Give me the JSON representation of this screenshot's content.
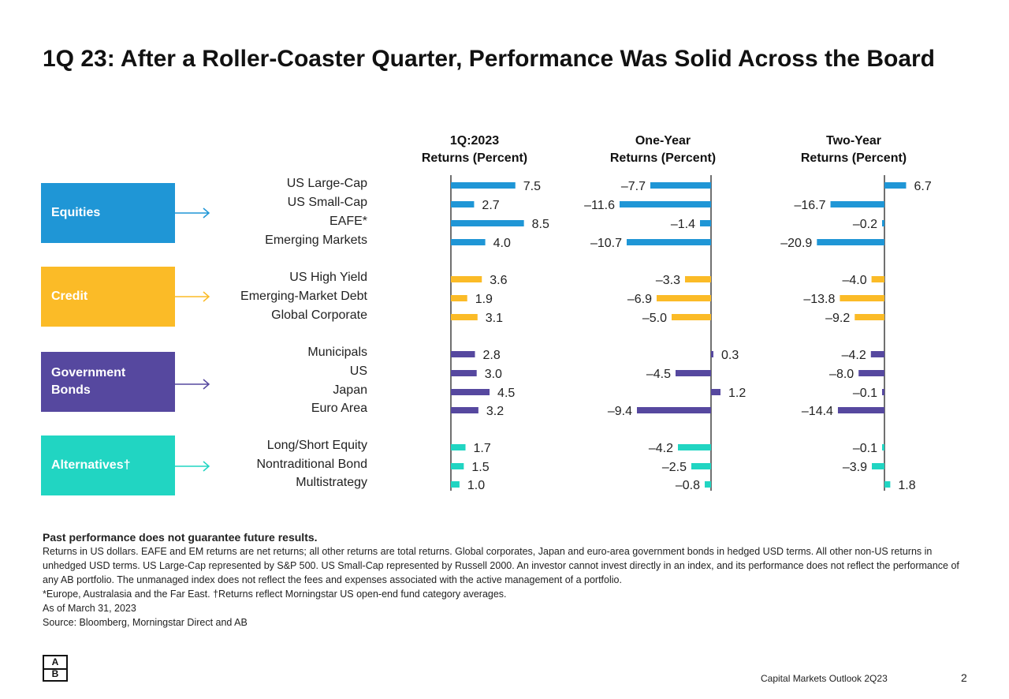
{
  "title": "1Q 23: After a Roller-Coaster Quarter, Performance Was Solid Across the Board",
  "chart_data": {
    "type": "bar",
    "orientation": "horizontal",
    "columns": [
      {
        "line1": "1Q:2023",
        "line2": "Returns (Percent)",
        "values": [
          7.5,
          2.7,
          8.5,
          4.0,
          3.6,
          1.9,
          3.1,
          2.8,
          3.0,
          4.5,
          3.2,
          1.7,
          1.5,
          1.0
        ]
      },
      {
        "line1": "One-Year",
        "line2": "Returns (Percent)",
        "values": [
          -7.7,
          -11.6,
          -1.4,
          -10.7,
          -3.3,
          -6.9,
          -5.0,
          0.3,
          -4.5,
          1.2,
          -9.4,
          -4.2,
          -2.5,
          -0.8
        ]
      },
      {
        "line1": "Two-Year",
        "line2": "Returns (Percent)",
        "values": [
          6.7,
          -16.7,
          -0.2,
          -20.9,
          -4.0,
          -13.8,
          -9.2,
          -4.2,
          -8.0,
          -0.1,
          -14.4,
          -0.1,
          -3.9,
          1.8
        ]
      }
    ],
    "categories": [
      "US Large-Cap",
      "US Small-Cap",
      "EAFE*",
      "Emerging Markets",
      "US High Yield",
      "Emerging-Market Debt",
      "Global Corporate",
      "Municipals",
      "US",
      "Japan",
      "Euro Area",
      "Long/Short Equity",
      "Nontraditional Bond",
      "Multistrategy"
    ],
    "groups": [
      {
        "name": "Equities",
        "color": "#1f96d6",
        "count": 4
      },
      {
        "name": "Credit",
        "color": "#fbbb27",
        "count": 3
      },
      {
        "name": "Government Bonds",
        "color": "#56489f",
        "count": 4
      },
      {
        "name": "Alternatives†",
        "color": "#21d5c2",
        "count": 3
      }
    ],
    "number_format": "one decimal; negatives shown with en dash"
  },
  "notes": {
    "heading": "Past performance does not guarantee future results.",
    "body": "Returns in US dollars. EAFE and EM returns are net returns; all other returns are total returns. Global corporates, Japan and euro-area government bonds in hedged USD terms. All other non-US returns in unhedged USD terms. US Large-Cap represented by S&P 500. US Small-Cap represented by Russell 2000. An investor cannot invest directly in an index, and its performance does not reflect the performance of any AB portfolio. The unmanaged index does not reflect the fees and expenses associated with the active management of a portfolio.",
    "footnote": "*Europe, Australasia and the Far East. †Returns reflect Morningstar US open-end fund category averages.",
    "as_of": "As of March 31, 2023",
    "source": "Source: Bloomberg, Morningstar Direct and AB"
  },
  "logo": {
    "top": "A",
    "bottom": "B"
  },
  "footer": {
    "title": "Capital Markets Outlook 2Q23",
    "page": "2"
  }
}
